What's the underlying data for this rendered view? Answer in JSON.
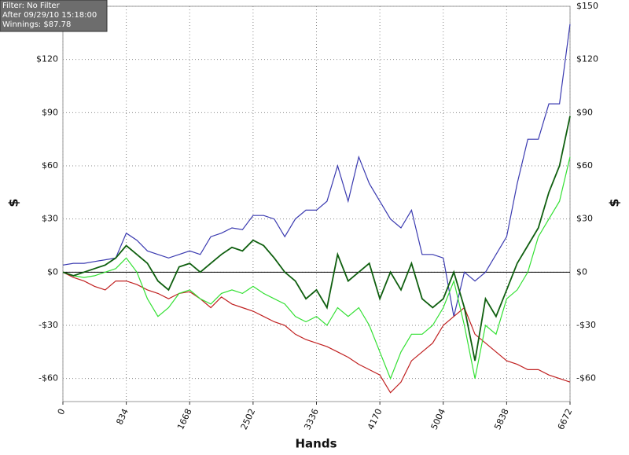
{
  "chart_data": {
    "type": "line",
    "info": [
      "Filter: No Filter",
      "After 09/29/10 15:18:00",
      "Winnings: $87.78"
    ],
    "xlabel": "Hands",
    "ylabel": "$",
    "x": [
      0,
      139,
      278,
      417,
      556,
      695,
      834,
      973,
      1112,
      1251,
      1390,
      1529,
      1668,
      1807,
      1946,
      2085,
      2224,
      2363,
      2502,
      2641,
      2780,
      2919,
      3058,
      3197,
      3336,
      3475,
      3614,
      3753,
      3892,
      4031,
      4170,
      4309,
      4448,
      4587,
      4726,
      4865,
      5004,
      5143,
      5282,
      5421,
      5560,
      5699,
      5838,
      5977,
      6116,
      6255,
      6394,
      6533,
      6672
    ],
    "xlim": [
      0,
      6672
    ],
    "xticks": [
      0,
      834,
      1668,
      2502,
      3336,
      4170,
      5004,
      5838,
      6672
    ],
    "ylim": [
      -73,
      150
    ],
    "yticks": [
      {
        "value": -60,
        "label": "-$60"
      },
      {
        "value": -30,
        "label": "-$30"
      },
      {
        "value": 0,
        "label": "$0"
      },
      {
        "value": 30,
        "label": "$30"
      },
      {
        "value": 60,
        "label": "$60"
      },
      {
        "value": 90,
        "label": "$90"
      },
      {
        "value": 120,
        "label": "$120"
      },
      {
        "value": 150,
        "label": "$150"
      }
    ],
    "grid": true,
    "series": [
      {
        "color": "#3a3ab0",
        "values": [
          4,
          5,
          5,
          6,
          7,
          8,
          22,
          18,
          12,
          10,
          8,
          10,
          12,
          10,
          20,
          22,
          25,
          24,
          32,
          32,
          30,
          20,
          30,
          35,
          35,
          40,
          60,
          40,
          65,
          50,
          40,
          30,
          25,
          35,
          10,
          10,
          8,
          -25,
          0,
          -5,
          0,
          10,
          20,
          50,
          75,
          75,
          95,
          95,
          140
        ]
      },
      {
        "color": "#c02020",
        "values": [
          0,
          -3,
          -5,
          -8,
          -10,
          -5,
          -5,
          -7,
          -10,
          -12,
          -15,
          -12,
          -11,
          -15,
          -20,
          -14,
          -18,
          -20,
          -22,
          -25,
          -28,
          -30,
          -35,
          -38,
          -40,
          -42,
          -45,
          -48,
          -52,
          -55,
          -58,
          -68,
          -62,
          -50,
          -45,
          -40,
          -30,
          -25,
          -20,
          -35,
          -40,
          -45,
          -50,
          -52,
          -55,
          -55,
          -58,
          -60,
          -62
        ]
      },
      {
        "color": "#33e033",
        "values": [
          0,
          -2,
          -3,
          -2,
          0,
          2,
          8,
          0,
          -15,
          -25,
          -20,
          -12,
          -10,
          -15,
          -18,
          -12,
          -10,
          -12,
          -8,
          -12,
          -15,
          -18,
          -25,
          -28,
          -25,
          -30,
          -20,
          -25,
          -20,
          -30,
          -45,
          -60,
          -45,
          -35,
          -35,
          -30,
          -20,
          -5,
          -30,
          -60,
          -30,
          -35,
          -15,
          -10,
          0,
          20,
          30,
          40,
          65
        ]
      },
      {
        "color": "#0f5f0f",
        "values": [
          0,
          -2,
          0,
          2,
          4,
          8,
          15,
          10,
          5,
          -5,
          -10,
          3,
          5,
          0,
          5,
          10,
          14,
          12,
          18,
          15,
          8,
          0,
          -5,
          -15,
          -10,
          -20,
          10,
          -5,
          0,
          5,
          -15,
          0,
          -10,
          5,
          -15,
          -20,
          -15,
          0,
          -20,
          -50,
          -15,
          -25,
          -10,
          5,
          15,
          25,
          45,
          60,
          88
        ]
      }
    ]
  }
}
